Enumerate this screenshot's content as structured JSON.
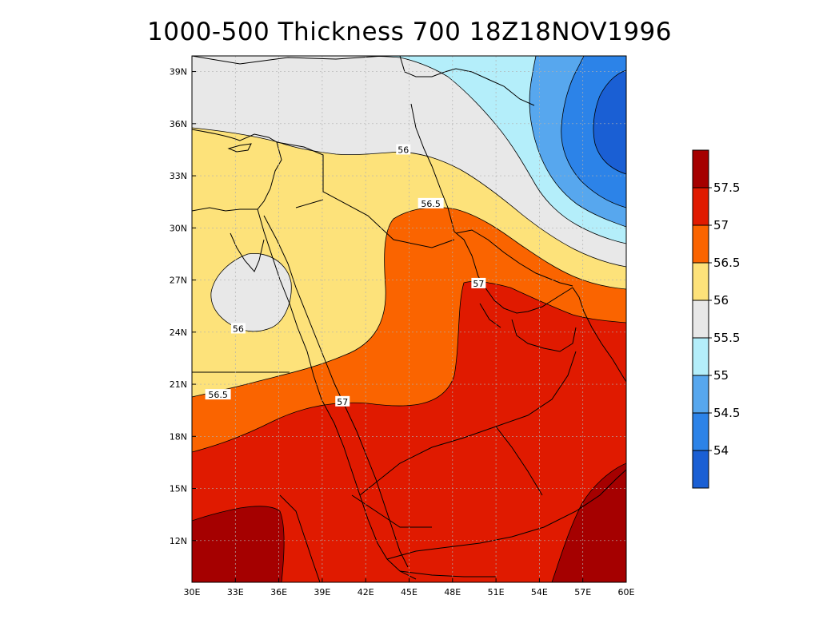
{
  "title": "1000-500 Thickness 700 18Z18NOV1996",
  "map": {
    "lon_range": [
      30,
      60
    ],
    "lat_range": [
      9.6,
      39.9
    ],
    "x_ticks": [
      {
        "value": 30,
        "label": "30E"
      },
      {
        "value": 33,
        "label": "33E"
      },
      {
        "value": 36,
        "label": "36E"
      },
      {
        "value": 39,
        "label": "39E"
      },
      {
        "value": 42,
        "label": "42E"
      },
      {
        "value": 45,
        "label": "45E"
      },
      {
        "value": 48,
        "label": "48E"
      },
      {
        "value": 51,
        "label": "51E"
      },
      {
        "value": 54,
        "label": "54E"
      },
      {
        "value": 57,
        "label": "57E"
      },
      {
        "value": 60,
        "label": "60E"
      }
    ],
    "y_ticks": [
      {
        "value": 12,
        "label": "12N"
      },
      {
        "value": 15,
        "label": "15N"
      },
      {
        "value": 18,
        "label": "18N"
      },
      {
        "value": 21,
        "label": "21N"
      },
      {
        "value": 24,
        "label": "24N"
      },
      {
        "value": 27,
        "label": "27N"
      },
      {
        "value": 30,
        "label": "30N"
      },
      {
        "value": 33,
        "label": "33N"
      },
      {
        "value": 36,
        "label": "36N"
      },
      {
        "value": 39,
        "label": "39N"
      }
    ],
    "grid": "dotted",
    "contour_labels": [
      {
        "text": "56",
        "lon": 44.6,
        "lat": 34.5
      },
      {
        "text": "56.5",
        "lon": 46.5,
        "lat": 31.4
      },
      {
        "text": "57",
        "lon": 49.8,
        "lat": 26.8
      },
      {
        "text": "56",
        "lon": 33.2,
        "lat": 24.2
      },
      {
        "text": "56.5",
        "lon": 31.8,
        "lat": 20.4
      },
      {
        "text": "57",
        "lon": 40.4,
        "lat": 20.0
      }
    ]
  },
  "colorbar": {
    "levels": [
      "54",
      "54.5",
      "55",
      "55.5",
      "56",
      "56.5",
      "57",
      "57.5"
    ],
    "colors": [
      "#1a5fd4",
      "#2c83e8",
      "#57a7ee",
      "#b4eefa",
      "#e8e8e8",
      "#fde27a",
      "#fa6400",
      "#e01a00",
      "#a50000"
    ]
  }
}
